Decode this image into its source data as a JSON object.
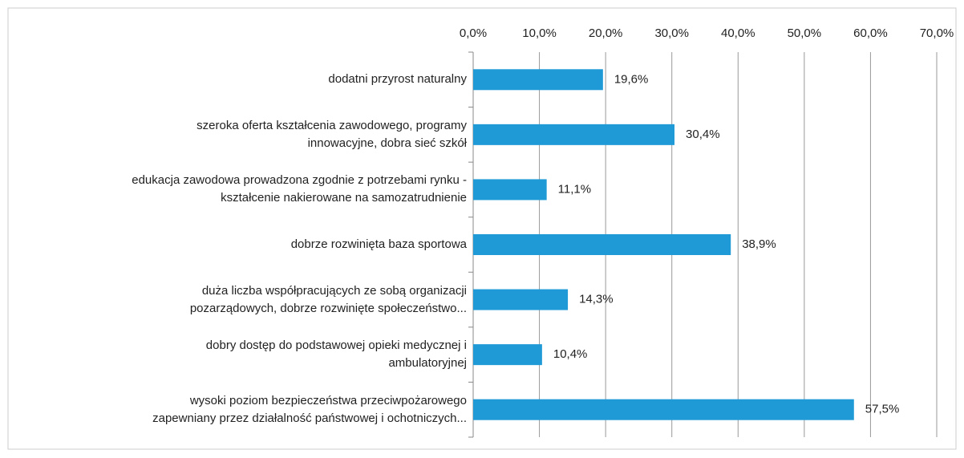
{
  "chart_data": {
    "type": "bar",
    "orientation": "horizontal",
    "categories": [
      "dodatni przyrost naturalny",
      "szeroka oferta kształcenia zawodowego, programy\ninnowacyjne, dobra sieć szkół",
      "edukacja zawodowa prowadzona zgodnie z potrzebami rynku -\nkształcenie nakierowane na samozatrudnienie",
      "dobrze rozwinięta baza sportowa",
      "duża liczba współpracujących ze sobą organizacji\npozarządowych, dobrze rozwinięte społeczeństwo...",
      "dobry dostęp do podstawowej opieki medycznej i\nambulatoryjnej",
      "wysoki poziom bezpieczeństwa przeciwpożarowego\nzapewniany przez działalność państwowej i ochotniczych..."
    ],
    "values": [
      19.6,
      30.4,
      11.1,
      38.9,
      14.3,
      10.4,
      57.5
    ],
    "value_labels": [
      "19,6%",
      "30,4%",
      "11,1%",
      "38,9%",
      "14,3%",
      "10,4%",
      "57,5%"
    ],
    "color": "#1f9ad6",
    "xlim": [
      0,
      70
    ],
    "xticks": [
      {
        "value": 0,
        "label": "0,0%"
      },
      {
        "value": 10,
        "label": "10,0%"
      },
      {
        "value": 20,
        "label": "20,0%"
      },
      {
        "value": 30,
        "label": "30,0%"
      },
      {
        "value": 40,
        "label": "40,0%"
      },
      {
        "value": 50,
        "label": "50,0%"
      },
      {
        "value": 60,
        "label": "60,0%"
      },
      {
        "value": 70,
        "label": "70,0%"
      }
    ],
    "grid": true
  }
}
